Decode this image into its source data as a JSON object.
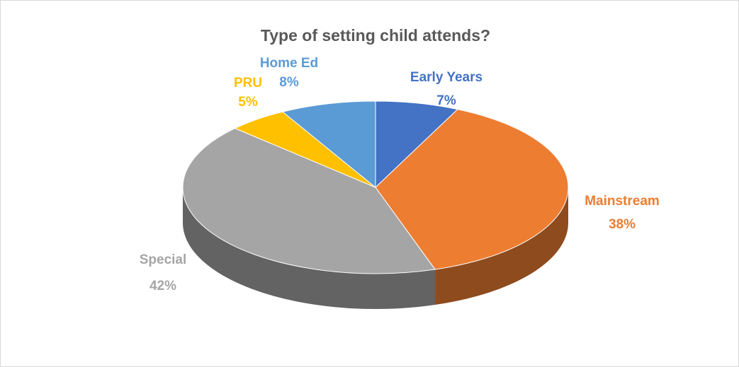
{
  "chart_data": {
    "type": "pie",
    "title": "Type of setting child attends?",
    "categories": [
      "Early Years",
      "Mainstream",
      "Special",
      "PRU",
      "Home Ed"
    ],
    "values": [
      7,
      38,
      42,
      5,
      8
    ],
    "value_labels": [
      "7%",
      "38%",
      "42%",
      "5%",
      "8%"
    ],
    "colors": [
      "#4472c4",
      "#ed7d31",
      "#a5a5a5",
      "#ffc000",
      "#5b9bd5"
    ]
  }
}
